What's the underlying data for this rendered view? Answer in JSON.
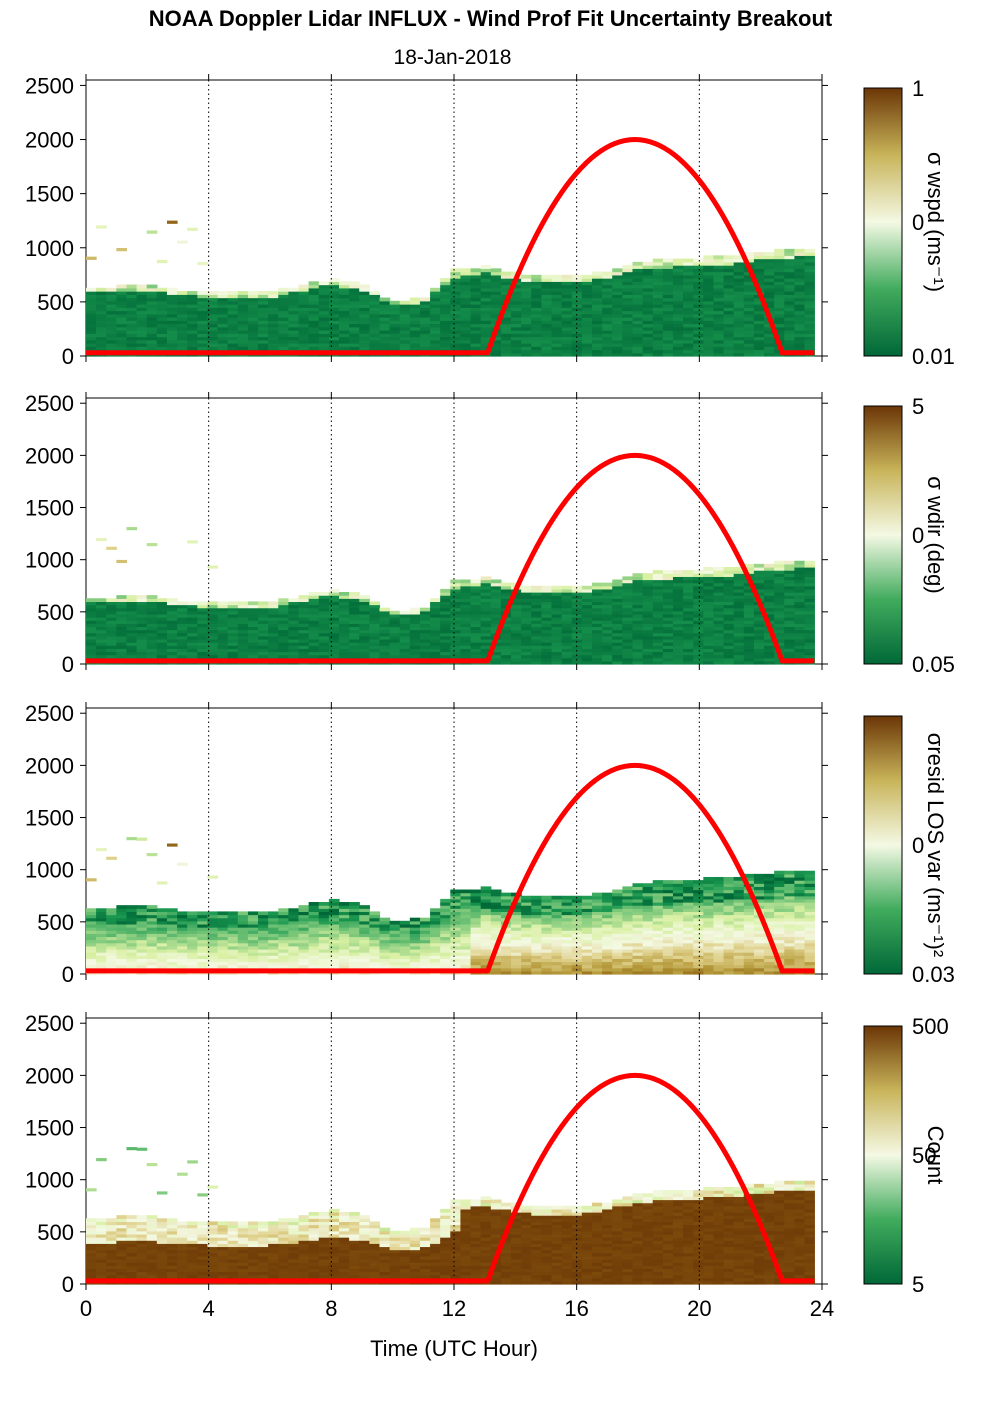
{
  "title": "NOAA Doppler Lidar INFLUX - Wind Prof Fit Uncertainty Breakout",
  "subtitle": "18-Jan-2018",
  "chart_data": {
    "type": "heatmap",
    "x_axis": {
      "label": "Time (UTC Hour)",
      "range": [
        0,
        24
      ],
      "ticks": [
        0,
        4,
        8,
        12,
        16,
        20,
        24
      ],
      "gridlines_at": [
        4,
        8,
        12,
        16,
        20,
        24
      ]
    },
    "y_axis": {
      "range": [
        0,
        2550
      ],
      "ticks": [
        0,
        500,
        1000,
        1500,
        2000,
        2500
      ]
    },
    "colors": {
      "low": "#006837",
      "mid": "#f4f9e4",
      "high": "#6b3606",
      "overlay": "#ff0000"
    },
    "overlay_curve": {
      "color": "#ff0000",
      "baseline_y": 30,
      "peak_y": 2000,
      "start_hour": 13.1,
      "peak_hour": 17.9,
      "end_hour": 22.7
    },
    "panels": [
      {
        "colorbar_label": "σ wspd (ms⁻¹)",
        "colorbar_ticks": [
          "1",
          "0",
          "0.01"
        ],
        "pattern": "wspd"
      },
      {
        "colorbar_label": "σ wdir (deg)",
        "colorbar_ticks": [
          "5",
          "0",
          "0.05"
        ],
        "pattern": "wdir"
      },
      {
        "colorbar_label": "σresid LOS var (ms⁻¹)²",
        "colorbar_ticks": [
          "0",
          "0.03"
        ],
        "pattern": "resid"
      },
      {
        "colorbar_label": "Count",
        "colorbar_ticks": [
          "500",
          "50",
          "5"
        ],
        "pattern": "count"
      }
    ],
    "top_of_data_profile": {
      "hours": [
        0,
        1,
        2,
        3,
        4,
        5,
        6,
        7,
        8,
        9,
        10,
        11,
        12,
        13,
        14,
        15,
        16,
        17,
        18,
        19,
        20,
        21,
        22,
        23,
        24
      ],
      "height_m": [
        620,
        630,
        640,
        600,
        580,
        570,
        580,
        640,
        700,
        650,
        500,
        520,
        780,
        820,
        760,
        720,
        730,
        780,
        860,
        880,
        900,
        910,
        950,
        980,
        980
      ]
    }
  }
}
